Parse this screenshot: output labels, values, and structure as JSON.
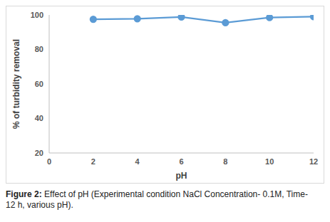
{
  "chart_data": {
    "type": "line",
    "caption": "Figure 2: Effect of pH (Experimental condition NaCl Concentration- 0.1M, Time- 12 h, various pH).",
    "x_label": "pH",
    "y_label": "% of turbidity removal",
    "x": [
      2,
      4,
      6,
      8,
      10,
      12
    ],
    "values": [
      97.5,
      97.8,
      98.8,
      95.5,
      98.5,
      99
    ],
    "color": "#5b9bd5",
    "marker": "circle",
    "xlim": [
      0,
      12
    ],
    "xticks": [
      0,
      2,
      4,
      6,
      8,
      10,
      12
    ],
    "ylim": [
      20,
      100
    ],
    "yticks": [
      20,
      40,
      60,
      80,
      100
    ],
    "grid": false
  }
}
